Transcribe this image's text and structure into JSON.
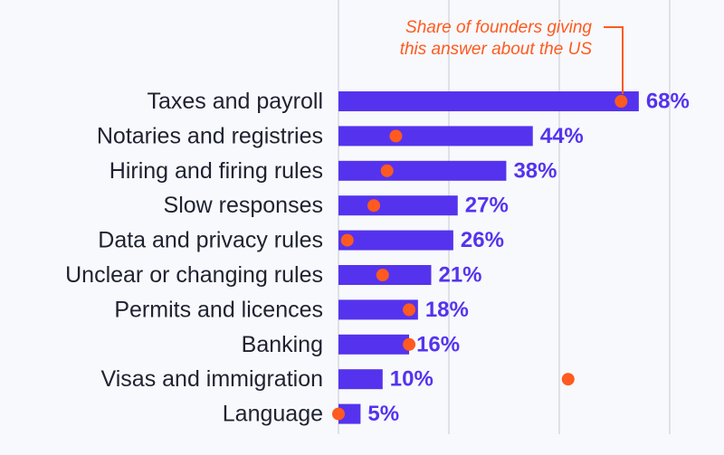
{
  "chart_data": {
    "type": "bar",
    "orientation": "horizontal",
    "categories": [
      "Taxes and payroll",
      "Notaries and registries",
      "Hiring and firing rules",
      "Slow responses",
      "Data and privacy rules",
      "Unclear or changing rules",
      "Permits and licences",
      "Banking",
      "Visas and immigration",
      "Language"
    ],
    "series": [
      {
        "values": [
          68,
          44,
          38,
          27,
          26,
          21,
          18,
          16,
          10,
          5
        ],
        "value_labels": [
          "68%",
          "44%",
          "38%",
          "27%",
          "26%",
          "21%",
          "18%",
          "16%",
          "10%",
          "5%"
        ]
      },
      {
        "name": "Share of founders giving this answer about the US",
        "marker": "dot",
        "values": [
          64,
          13,
          11,
          8,
          2,
          10,
          16,
          16,
          52,
          0
        ]
      }
    ],
    "annotation_lines": [
      "Share of founders giving",
      "this answer about the US"
    ],
    "xlim": [
      0,
      75
    ],
    "gridlines_at": [
      0,
      25,
      50,
      75
    ],
    "grid": true,
    "colors": {
      "bar": "#5533ee",
      "dot": "#ff5a1f",
      "annotation": "#ff5a1f",
      "value_label": "#5533ee",
      "grid": "#d5d9e2"
    }
  }
}
